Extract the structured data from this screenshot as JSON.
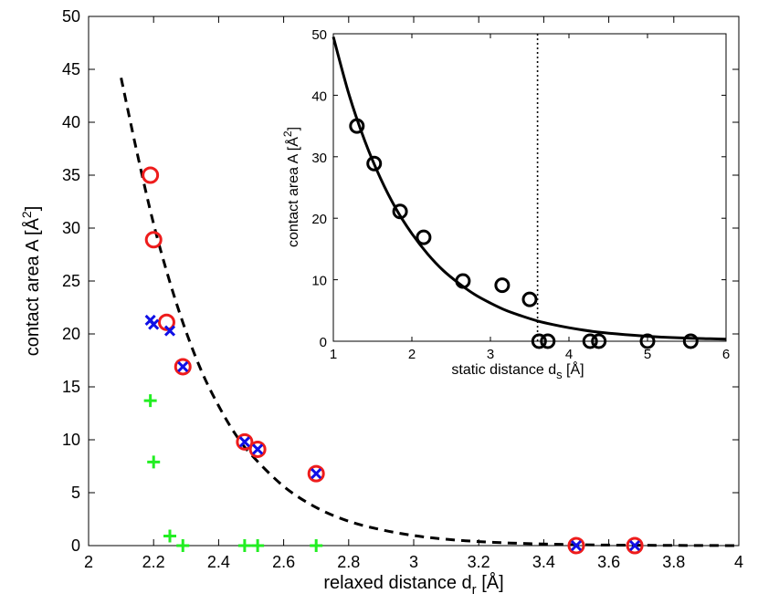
{
  "chart_data": [
    {
      "type": "scatter",
      "name": "main",
      "xlabel": "relaxed distance d",
      "xlabel_sub": "r",
      "xlabel_unit": " [Å]",
      "ylabel": "contact area A [Å",
      "ylabel_sup": "2",
      "ylabel_end": "]",
      "xlim": [
        2,
        4
      ],
      "ylim": [
        0,
        50
      ],
      "xticks": [
        "2",
        "2.2",
        "2.4",
        "2.6",
        "2.8",
        "3",
        "3.2",
        "3.4",
        "3.6",
        "3.8",
        "4"
      ],
      "yticks": [
        "0",
        "5",
        "10",
        "15",
        "20",
        "25",
        "30",
        "35",
        "40",
        "45",
        "50"
      ],
      "series": [
        {
          "name": "red circles",
          "marker": "circle",
          "color": "#ee1c1c",
          "x": [
            2.19,
            2.2,
            2.24,
            2.29,
            2.48,
            2.52,
            2.7,
            3.5,
            3.68
          ],
          "y": [
            35,
            28.9,
            21.1,
            16.9,
            9.8,
            9.1,
            6.8,
            0,
            0
          ]
        },
        {
          "name": "blue crosses",
          "marker": "x",
          "color": "#1010e6",
          "x": [
            2.19,
            2.2,
            2.25,
            2.29,
            2.48,
            2.52,
            2.7,
            3.5,
            3.68
          ],
          "y": [
            21.3,
            20.9,
            20.3,
            16.9,
            9.8,
            9.1,
            6.8,
            0,
            0
          ]
        },
        {
          "name": "green plus",
          "marker": "plus",
          "color": "#22ee22",
          "x": [
            2.19,
            2.2,
            2.25,
            2.29,
            2.48,
            2.52,
            2.7
          ],
          "y": [
            13.7,
            7.9,
            0.9,
            0,
            0,
            0,
            0
          ]
        }
      ],
      "fit": {
        "style": "dashed",
        "color": "#000000",
        "x": [
          2.1,
          2.15,
          2.2,
          2.25,
          2.3,
          2.35,
          2.4,
          2.45,
          2.5,
          2.6,
          2.7,
          2.8,
          2.9,
          3.0,
          3.1,
          3.2,
          3.3,
          3.4,
          3.5,
          3.6,
          3.7,
          3.8,
          3.9,
          4.0
        ],
        "y": [
          44.2,
          37.0,
          30.4,
          24.9,
          20.2,
          16.3,
          13.2,
          10.6,
          8.6,
          5.6,
          3.6,
          2.3,
          1.5,
          0.95,
          0.6,
          0.38,
          0.24,
          0.15,
          0.09,
          0.05,
          0.03,
          0.02,
          0.01,
          0.0
        ]
      }
    },
    {
      "type": "scatter",
      "name": "inset",
      "xlabel": "static distance d",
      "xlabel_sub": "s",
      "xlabel_unit": " [Å]",
      "ylabel": "contact area A [Å",
      "ylabel_sup": "2",
      "ylabel_end": "]",
      "xlim": [
        1,
        6
      ],
      "ylim": [
        0,
        50
      ],
      "xticks": [
        "1",
        "2",
        "3",
        "4",
        "5",
        "6"
      ],
      "yticks": [
        "0",
        "10",
        "20",
        "30",
        "40",
        "50"
      ],
      "vline_x": 3.6,
      "series": [
        {
          "name": "black circles",
          "marker": "circle",
          "color": "#000000",
          "x": [
            1.3,
            1.52,
            1.85,
            2.15,
            2.65,
            3.15,
            3.5,
            3.62,
            3.73,
            4.27,
            4.38,
            5.0,
            5.55
          ],
          "y": [
            35,
            28.9,
            21.1,
            16.9,
            9.8,
            9.1,
            6.8,
            0,
            0,
            0,
            0,
            0,
            0
          ]
        }
      ],
      "fit": {
        "style": "solid",
        "color": "#000000",
        "x": [
          1.0,
          1.2,
          1.4,
          1.6,
          1.8,
          2.0,
          2.2,
          2.4,
          2.6,
          2.8,
          3.0,
          3.2,
          3.4,
          3.6,
          3.8,
          4.0,
          4.3,
          4.6,
          5.0,
          5.4,
          5.8,
          6.0
        ],
        "y": [
          49.5,
          40.1,
          32.6,
          26.5,
          21.5,
          17.5,
          14.2,
          11.5,
          9.4,
          7.6,
          6.2,
          5.0,
          4.1,
          3.3,
          2.7,
          2.2,
          1.6,
          1.2,
          0.8,
          0.55,
          0.4,
          0.33
        ]
      }
    }
  ]
}
